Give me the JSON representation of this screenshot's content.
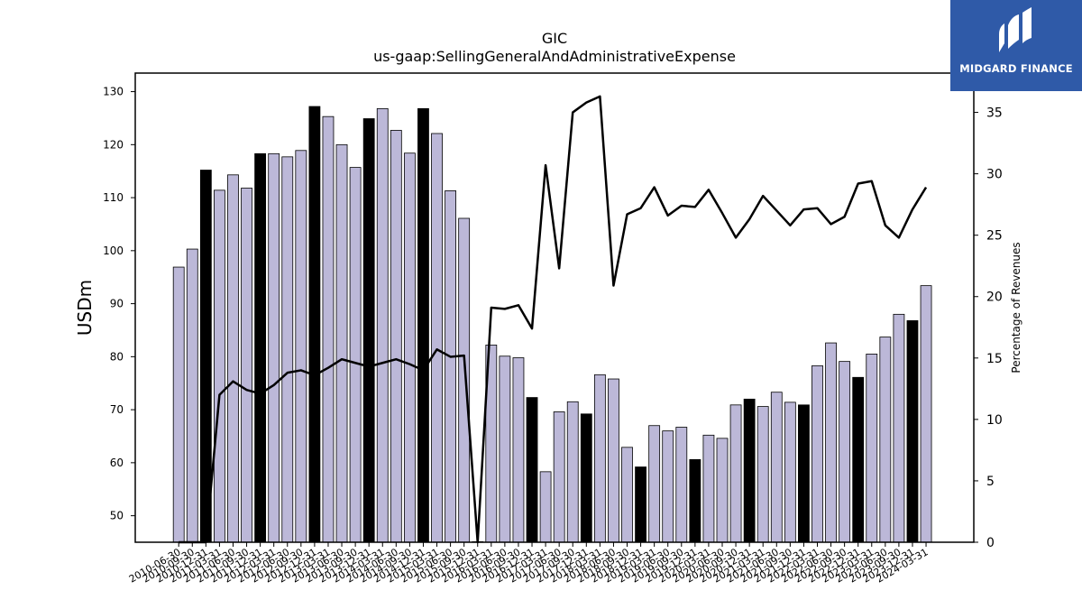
{
  "chart_data": {
    "type": "bar",
    "title": "GIC",
    "subtitle": "us-gaap:SellingGeneralAndAdministrativeExpense",
    "ylabel": "USDm",
    "ylabel_right": "Percentage of Revenues",
    "ylim": [
      45,
      133.5
    ],
    "ylim_right": [
      0,
      38.2
    ],
    "yticks": [
      50,
      60,
      70,
      80,
      90,
      100,
      110,
      120,
      130
    ],
    "yticks_right": [
      0,
      5,
      10,
      15,
      20,
      25,
      30,
      35
    ],
    "colors": {
      "bar": "#bcb8d8",
      "bar_highlight": "#000000",
      "line": "#000000"
    },
    "categories": [
      "2010-06-30",
      "2010-09-30",
      "2010-12-31",
      "2011-03-31",
      "2011-06-30",
      "2011-09-30",
      "2011-12-31",
      "2012-03-31",
      "2012-06-30",
      "2012-09-30",
      "2012-12-31",
      "2013-03-31",
      "2013-06-30",
      "2013-09-30",
      "2013-12-31",
      "2014-03-31",
      "2014-06-30",
      "2014-09-30",
      "2014-12-31",
      "2015-03-31",
      "2015-06-30",
      "2015-09-30",
      "2015-12-31",
      "2016-03-31",
      "2016-06-30",
      "2016-09-30",
      "2016-12-31",
      "2017-03-31",
      "2017-06-30",
      "2017-09-30",
      "2017-12-31",
      "2018-03-31",
      "2018-06-30",
      "2018-09-30",
      "2018-12-31",
      "2019-03-31",
      "2019-06-30",
      "2019-09-30",
      "2019-12-31",
      "2020-03-31",
      "2020-06-30",
      "2020-09-30",
      "2020-12-31",
      "2021-03-31",
      "2021-06-30",
      "2021-09-30",
      "2021-12-31",
      "2022-03-31",
      "2022-06-30",
      "2022-09-30",
      "2022-12-31",
      "2023-03-31",
      "2023-06-30",
      "2023-09-30",
      "2023-12-31",
      "2024-03-31"
    ],
    "xtick_labels": [
      "2010-06-30",
      "2010-09-30",
      "2010-12-31",
      "2011-03-31",
      "2011-06-30",
      "2011-09-30",
      "2011-12-31",
      "2012-03-31",
      "2012-06-30",
      "2012-09-30",
      "2012-12-31",
      "2013-03-31",
      "2013-06-30",
      "2013-09-30",
      "2013-12-31",
      "2014-03-31",
      "2014-06-30",
      "2014-09-30",
      "2014-12-31",
      "2015-03-31",
      "2015-06-30",
      "2015-09-30",
      "2015-12-31",
      "2016-03-31",
      "2016-06-30",
      "2016-09-30",
      "2016-12-31",
      "2017-03-31",
      "2017-06-30",
      "2017-09-30",
      "2017-12-31",
      "2018-03-31",
      "2018-06-30",
      "2018-09-30",
      "2018-12-31",
      "2019-03-31",
      "2019-06-30",
      "2019-09-30",
      "2019-12-31",
      "2020-03-31",
      "2020-06-30",
      "2020-09-30",
      "2020-12-31",
      "2021-03-31",
      "2021-06-30",
      "2021-09-30",
      "2021-12-31",
      "2022-03-31",
      "2022-06-30",
      "2022-09-30",
      "2022-12-31",
      "2023-03-31",
      "2023-06-30",
      "2023-09-30",
      "2023-12-31",
      "2024-03-31"
    ],
    "series": [
      {
        "axis": "left",
        "values": [
          96.9,
          100.3,
          115.2,
          111.4,
          114.3,
          111.8,
          118.3,
          118.3,
          117.7,
          118.9,
          127.2,
          125.3,
          120.0,
          115.7,
          124.9,
          126.8,
          122.7,
          118.4,
          126.8,
          122.1,
          111.3,
          106.1,
          45.1,
          82.2,
          80.1,
          79.8,
          72.3,
          58.3,
          69.6,
          71.5,
          69.2,
          76.6,
          75.8,
          62.9,
          59.2,
          67.0,
          66.0,
          66.7,
          60.6,
          65.2,
          64.6,
          70.9,
          72.0,
          70.6,
          73.3,
          71.4,
          70.9,
          78.3,
          82.6,
          79.1,
          76.1,
          80.5,
          83.7,
          88.0,
          86.8,
          93.4
        ],
        "highlight": [
          false,
          false,
          true,
          false,
          false,
          false,
          true,
          false,
          false,
          false,
          true,
          false,
          false,
          false,
          true,
          false,
          false,
          false,
          true,
          false,
          false,
          false,
          true,
          false,
          false,
          false,
          true,
          false,
          false,
          false,
          true,
          false,
          false,
          false,
          true,
          false,
          false,
          false,
          true,
          false,
          false,
          false,
          true,
          false,
          false,
          false,
          true,
          false,
          false,
          false,
          true,
          false,
          false,
          false,
          true,
          false
        ]
      },
      {
        "axis": "right",
        "type": "line",
        "values": [
          0.0,
          0.0,
          0.0,
          12.0,
          13.1,
          12.4,
          12.1,
          12.8,
          13.8,
          14.0,
          13.6,
          14.2,
          14.9,
          14.6,
          14.3,
          14.6,
          14.9,
          14.5,
          14.0,
          15.7,
          15.1,
          15.2,
          0.0,
          19.1,
          19.0,
          19.3,
          17.4,
          30.7,
          22.3,
          35.0,
          35.8,
          36.3,
          20.9,
          26.7,
          27.2,
          28.9,
          26.6,
          27.4,
          27.3,
          28.7,
          26.8,
          24.8,
          26.3,
          28.2,
          27.0,
          25.8,
          27.1,
          27.2,
          25.9,
          26.5,
          29.2,
          29.4,
          25.8,
          24.8,
          27.1,
          28.9
        ]
      }
    ]
  },
  "logo": {
    "text": "MIDGARD FINANCE"
  }
}
